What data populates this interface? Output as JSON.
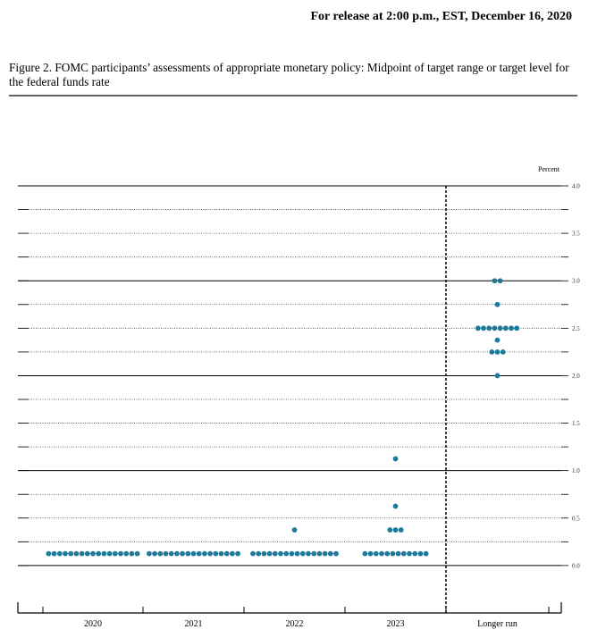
{
  "header": {
    "release": "For release at 2:00 p.m., EST, December 16, 2020"
  },
  "chart_data": {
    "type": "dot",
    "title": "Figure 2.  FOMC participants’ assessments of appropriate monetary policy:  Midpoint of target range or target level for the federal funds rate",
    "y_label": "Percent",
    "categories": [
      "2020",
      "2021",
      "2022",
      "2023",
      "Longer run"
    ],
    "values": [
      [
        0.125,
        0.125,
        0.125,
        0.125,
        0.125,
        0.125,
        0.125,
        0.125,
        0.125,
        0.125,
        0.125,
        0.125,
        0.125,
        0.125,
        0.125,
        0.125,
        0.125
      ],
      [
        0.125,
        0.125,
        0.125,
        0.125,
        0.125,
        0.125,
        0.125,
        0.125,
        0.125,
        0.125,
        0.125,
        0.125,
        0.125,
        0.125,
        0.125,
        0.125,
        0.125
      ],
      [
        0.125,
        0.125,
        0.125,
        0.125,
        0.125,
        0.125,
        0.125,
        0.125,
        0.125,
        0.125,
        0.125,
        0.125,
        0.125,
        0.125,
        0.125,
        0.125,
        0.375
      ],
      [
        0.125,
        0.125,
        0.125,
        0.125,
        0.125,
        0.125,
        0.125,
        0.125,
        0.125,
        0.125,
        0.125,
        0.125,
        0.375,
        0.375,
        0.375,
        0.625,
        1.125
      ],
      [
        2.0,
        2.25,
        2.25,
        2.25,
        2.375,
        2.5,
        2.5,
        2.5,
        2.5,
        2.5,
        2.5,
        2.5,
        2.5,
        2.75,
        3.0,
        3.0
      ]
    ],
    "color": "#1f7a99",
    "ylim": [
      -0.5,
      4.0
    ],
    "yticks": [
      {
        "value": 0,
        "label": "0.0"
      },
      {
        "value": 0.5,
        "label": "0.5"
      },
      {
        "value": 1,
        "label": "1.0"
      },
      {
        "value": 1.5,
        "label": "1.5"
      },
      {
        "value": 2,
        "label": "2.0"
      },
      {
        "value": 2.5,
        "label": "2.5"
      },
      {
        "value": 3,
        "label": "3.0"
      },
      {
        "value": 3.5,
        "label": "3.5"
      },
      {
        "value": 4,
        "label": "4.0"
      }
    ],
    "minor_yticks": [
      0.25,
      0.75,
      1.25,
      1.75,
      2.25,
      2.75,
      3.25,
      3.75
    ],
    "grid": true
  }
}
